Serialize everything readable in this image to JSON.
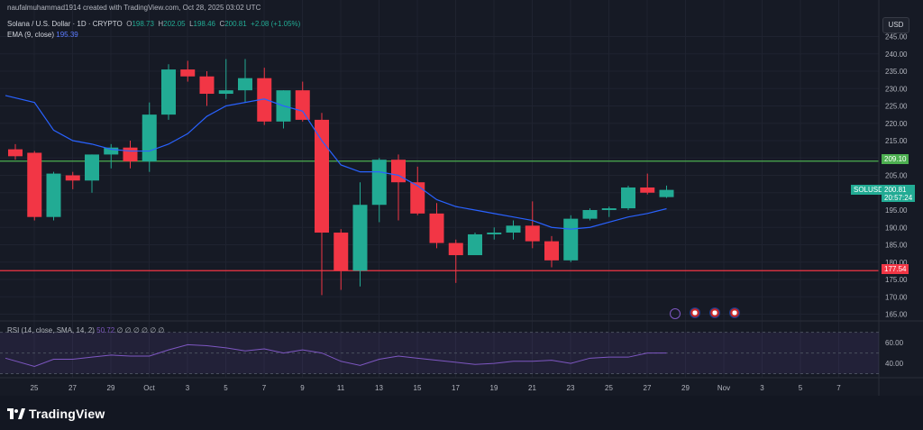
{
  "header": {
    "credit": "naufalmuhammad1914 created with TradingView.com, Oct 28, 2025 03:02 UTC",
    "symbol": "Solana / U.S. Dollar · 1D · CRYPTO",
    "o_label": "O",
    "o_value": "198.73",
    "h_label": "H",
    "h_value": "202.05",
    "l_label": "L",
    "l_value": "198.46",
    "c_label": "C",
    "c_value": "200.81",
    "change": "+2.08 (+1.05%)",
    "ema_label": "EMA (9, close)",
    "ema_value": "195.39"
  },
  "currency": "USD",
  "rsi": {
    "label": "RSI (14, close, SMA, 14, 2)",
    "value": "50.72",
    "placeholders": "∅ ∅ ∅ ∅ ∅ ∅",
    "levels": [
      "60.00",
      "40.00"
    ]
  },
  "price_tags": {
    "resistance": "209.10",
    "support": "177.54",
    "symbol": "SOLUSD",
    "last": "200.81",
    "countdown": "20:57:24"
  },
  "brand": "TradingView",
  "colors": {
    "up": "#22ab94",
    "down": "#f23645",
    "ema": "#2962ff",
    "resistance": "#4caf50",
    "support": "#f23645",
    "rsi": "#7e57c2"
  },
  "chart_data": {
    "type": "candlestick",
    "y_ticks": [
      "245.00",
      "240.00",
      "235.00",
      "230.00",
      "225.00",
      "220.00",
      "215.00",
      "210.00",
      "205.00",
      "200.00",
      "195.00",
      "190.00",
      "185.00",
      "180.00",
      "175.00",
      "170.00",
      "165.00"
    ],
    "ylim": [
      165,
      245
    ],
    "x_ticks": [
      "25",
      "27",
      "29",
      "Oct",
      "3",
      "5",
      "7",
      "9",
      "11",
      "13",
      "15",
      "17",
      "19",
      "21",
      "23",
      "25",
      "27",
      "29",
      "Nov",
      "3",
      "5",
      "7"
    ],
    "horizontal_lines": [
      209.1,
      177.54
    ],
    "candles": [
      {
        "o": 212.5,
        "h": 214.0,
        "l": 209.5,
        "c": 210.5
      },
      {
        "o": 211.5,
        "h": 212.0,
        "l": 192.0,
        "c": 193.0
      },
      {
        "o": 193.0,
        "h": 206.0,
        "l": 192.0,
        "c": 205.5
      },
      {
        "o": 205.0,
        "h": 206.0,
        "l": 201.0,
        "c": 203.5
      },
      {
        "o": 203.5,
        "h": 211.0,
        "l": 200.0,
        "c": 211.0
      },
      {
        "o": 211.0,
        "h": 214.0,
        "l": 207.0,
        "c": 213.0
      },
      {
        "o": 213.0,
        "h": 215.0,
        "l": 207.0,
        "c": 209.0
      },
      {
        "o": 209.0,
        "h": 226.0,
        "l": 206.0,
        "c": 222.5
      },
      {
        "o": 222.5,
        "h": 237.0,
        "l": 221.0,
        "c": 235.5
      },
      {
        "o": 235.5,
        "h": 238.0,
        "l": 232.0,
        "c": 233.5
      },
      {
        "o": 233.5,
        "h": 235.0,
        "l": 225.0,
        "c": 228.5
      },
      {
        "o": 228.5,
        "h": 238.5,
        "l": 227.0,
        "c": 229.5
      },
      {
        "o": 229.5,
        "h": 238.5,
        "l": 226.0,
        "c": 233.0
      },
      {
        "o": 233.0,
        "h": 236.0,
        "l": 219.5,
        "c": 220.5
      },
      {
        "o": 220.5,
        "h": 229.5,
        "l": 218.5,
        "c": 229.5
      },
      {
        "o": 229.5,
        "h": 232.0,
        "l": 220.5,
        "c": 221.0
      },
      {
        "o": 221.0,
        "h": 223.0,
        "l": 170.5,
        "c": 188.5
      },
      {
        "o": 188.5,
        "h": 189.5,
        "l": 172.0,
        "c": 177.5
      },
      {
        "o": 177.5,
        "h": 203.0,
        "l": 173.0,
        "c": 196.5
      },
      {
        "o": 196.5,
        "h": 210.0,
        "l": 191.5,
        "c": 209.5
      },
      {
        "o": 209.5,
        "h": 211.0,
        "l": 192.0,
        "c": 203.0
      },
      {
        "o": 203.0,
        "h": 207.5,
        "l": 193.5,
        "c": 194.0
      },
      {
        "o": 194.0,
        "h": 197.0,
        "l": 184.0,
        "c": 185.5
      },
      {
        "o": 185.5,
        "h": 186.5,
        "l": 174.0,
        "c": 182.0
      },
      {
        "o": 182.0,
        "h": 188.5,
        "l": 182.0,
        "c": 188.0
      },
      {
        "o": 188.0,
        "h": 190.0,
        "l": 186.5,
        "c": 188.5
      },
      {
        "o": 188.5,
        "h": 192.0,
        "l": 186.5,
        "c": 190.5
      },
      {
        "o": 190.5,
        "h": 197.5,
        "l": 184.0,
        "c": 186.0
      },
      {
        "o": 186.0,
        "h": 187.5,
        "l": 178.5,
        "c": 180.5
      },
      {
        "o": 180.5,
        "h": 193.5,
        "l": 180.0,
        "c": 192.5
      },
      {
        "o": 192.5,
        "h": 195.5,
        "l": 192.0,
        "c": 195.0
      },
      {
        "o": 195.0,
        "h": 196.0,
        "l": 193.0,
        "c": 195.5
      },
      {
        "o": 195.5,
        "h": 202.0,
        "l": 195.0,
        "c": 201.5
      },
      {
        "o": 201.5,
        "h": 205.5,
        "l": 199.5,
        "c": 200.0
      },
      {
        "o": 198.73,
        "h": 202.05,
        "l": 198.46,
        "c": 200.81
      }
    ],
    "ema": [
      228,
      226,
      218,
      215,
      214,
      212.5,
      212,
      212,
      214,
      217,
      222,
      225,
      226,
      227,
      225,
      223.5,
      215,
      208,
      206,
      206,
      205,
      202,
      198,
      196,
      195,
      194,
      193,
      192,
      190,
      189.5,
      190,
      191.5,
      193,
      194,
      195.39
    ],
    "rsi_values": [
      45,
      37,
      44,
      44,
      46,
      48,
      47,
      47,
      53,
      58,
      57,
      55,
      52,
      54,
      50,
      53,
      50,
      42,
      38,
      44,
      47,
      45,
      43,
      41,
      39,
      40,
      42,
      42,
      43,
      40,
      45,
      46,
      46,
      50,
      50
    ]
  }
}
